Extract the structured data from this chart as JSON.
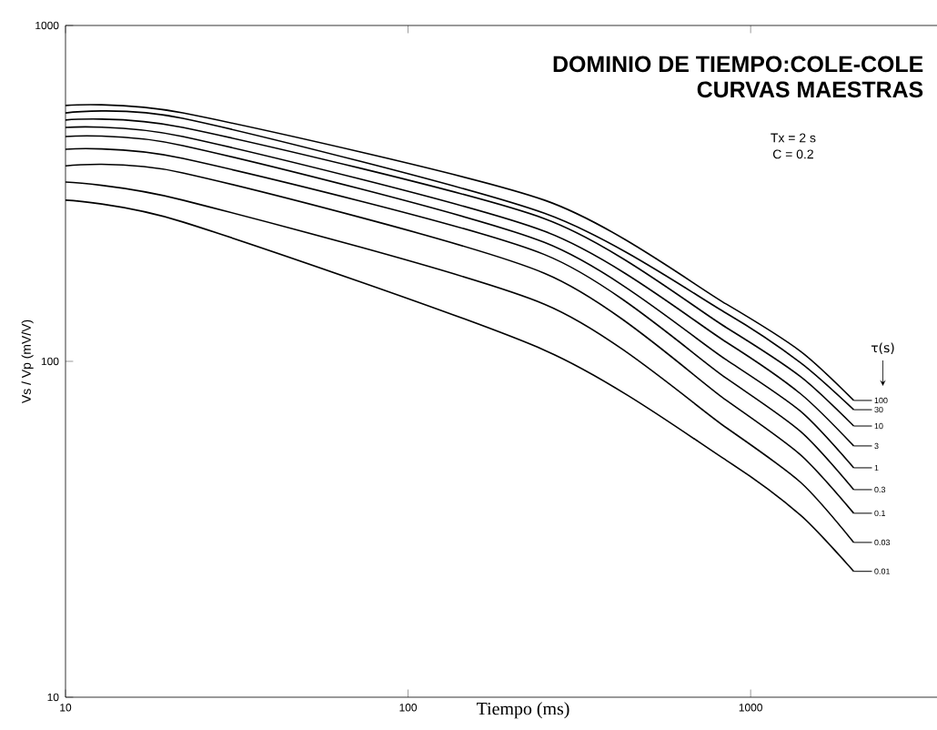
{
  "chart_data": {
    "type": "line",
    "title": "DOMINIO DE TIEMPO:COLE-COLE",
    "subtitle": "CURVAS MAESTRAS",
    "xlabel": "Tiempo (ms)",
    "ylabel": "Vs / Vp          (mV/V)",
    "legend_title": "τ(s)",
    "annotations": [
      "Tx = 2 s",
      "C = 0.2"
    ],
    "x": [
      10,
      22,
      250,
      850,
      1400,
      2000
    ],
    "series": [
      {
        "name": "100",
        "color": "#000000",
        "values": [
          578,
          549,
          302,
          148,
          107,
          76.5
        ]
      },
      {
        "name": "30",
        "color": "#000000",
        "values": [
          549,
          529,
          276,
          139,
          99,
          71.8
        ]
      },
      {
        "name": "10",
        "color": "#000000",
        "values": [
          523,
          497,
          266,
          126,
          90,
          64.2
        ]
      },
      {
        "name": "3",
        "color": "#000000",
        "values": [
          497,
          467,
          244,
          114,
          80,
          56
        ]
      },
      {
        "name": "1",
        "color": "#000000",
        "values": [
          467,
          439,
          226,
          101,
          71,
          48.2
        ]
      },
      {
        "name": "0.3",
        "color": "#000000",
        "values": [
          428,
          402,
          208,
          89,
          61.8,
          41.5
        ]
      },
      {
        "name": "0.1",
        "color": "#000000",
        "values": [
          382,
          364,
          183,
          76.5,
          52.6,
          35.3
        ]
      },
      {
        "name": "0.03",
        "color": "#000000",
        "values": [
          342,
          302,
          148,
          63.4,
          43.6,
          28.9
        ]
      },
      {
        "name": "0.01",
        "color": "#000000",
        "values": [
          302,
          260,
          108,
          50.7,
          34.8,
          23.7
        ]
      }
    ],
    "xlim": [
      10,
      3500
    ],
    "ylim": [
      10,
      1000
    ],
    "xticks": [
      10,
      100,
      1000
    ],
    "yticks": [
      10,
      100,
      1000
    ],
    "log": "xy",
    "legend": "right",
    "marker": "none",
    "line_style": "solid"
  }
}
